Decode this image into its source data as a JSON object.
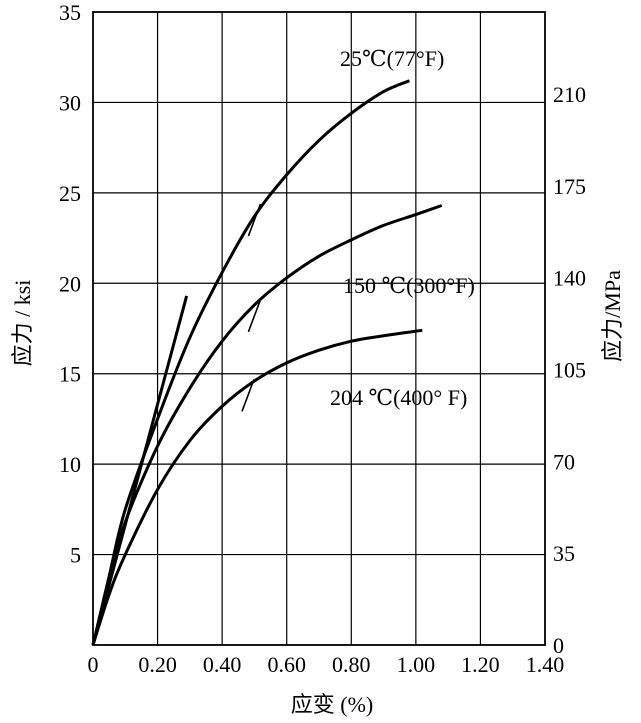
{
  "chart_data": {
    "type": "line",
    "xlabel": "应变 (%)",
    "ylabel": "应力 / ksi",
    "y2label": "应力/MPa",
    "xlim": [
      0,
      1.4
    ],
    "ylim": [
      0,
      35
    ],
    "y2lim": [
      0,
      241.3
    ],
    "grid": true,
    "x_ticks": [
      "0",
      "0.20",
      "0.40",
      "0.60",
      "0.80",
      "1.00",
      "1.20",
      "1.40"
    ],
    "y_ticks": [
      "",
      "5",
      "10",
      "15",
      "20",
      "25",
      "30",
      "35"
    ],
    "y2_ticks": [
      "0",
      "35",
      "70",
      "105",
      "140",
      "175",
      "210"
    ],
    "y2_tick_values": [
      0,
      35,
      70,
      105,
      140,
      175,
      210
    ],
    "series": [
      {
        "name": "25℃(77°F)",
        "x": [
          0,
          0.05,
          0.1,
          0.2,
          0.3,
          0.4,
          0.5,
          0.6,
          0.7,
          0.8,
          0.9,
          0.98
        ],
        "y": [
          0,
          3.8,
          7.5,
          12.5,
          17.0,
          20.6,
          23.7,
          26.0,
          27.9,
          29.4,
          30.6,
          31.2
        ],
        "mark": [
          0.5,
          23.5
        ]
      },
      {
        "name": "150 ℃(300°F)",
        "x": [
          0,
          0.05,
          0.1,
          0.2,
          0.3,
          0.4,
          0.5,
          0.6,
          0.7,
          0.8,
          0.9,
          1.0,
          1.08
        ],
        "y": [
          0,
          3.6,
          6.8,
          11.0,
          14.2,
          16.8,
          18.8,
          20.3,
          21.5,
          22.4,
          23.2,
          23.8,
          24.3
        ],
        "mark": [
          0.5,
          18.2
        ]
      },
      {
        "name": "204 ℃(400° F)",
        "x": [
          0,
          0.05,
          0.1,
          0.2,
          0.3,
          0.4,
          0.5,
          0.6,
          0.7,
          0.8,
          0.9,
          1.02
        ],
        "y": [
          0,
          2.8,
          5.0,
          8.6,
          11.3,
          13.2,
          14.6,
          15.6,
          16.3,
          16.8,
          17.1,
          17.4
        ],
        "mark": [
          0.48,
          13.8
        ]
      },
      {
        "name": "",
        "x": [
          0,
          0.29
        ],
        "y": [
          0,
          19.3
        ]
      }
    ]
  }
}
